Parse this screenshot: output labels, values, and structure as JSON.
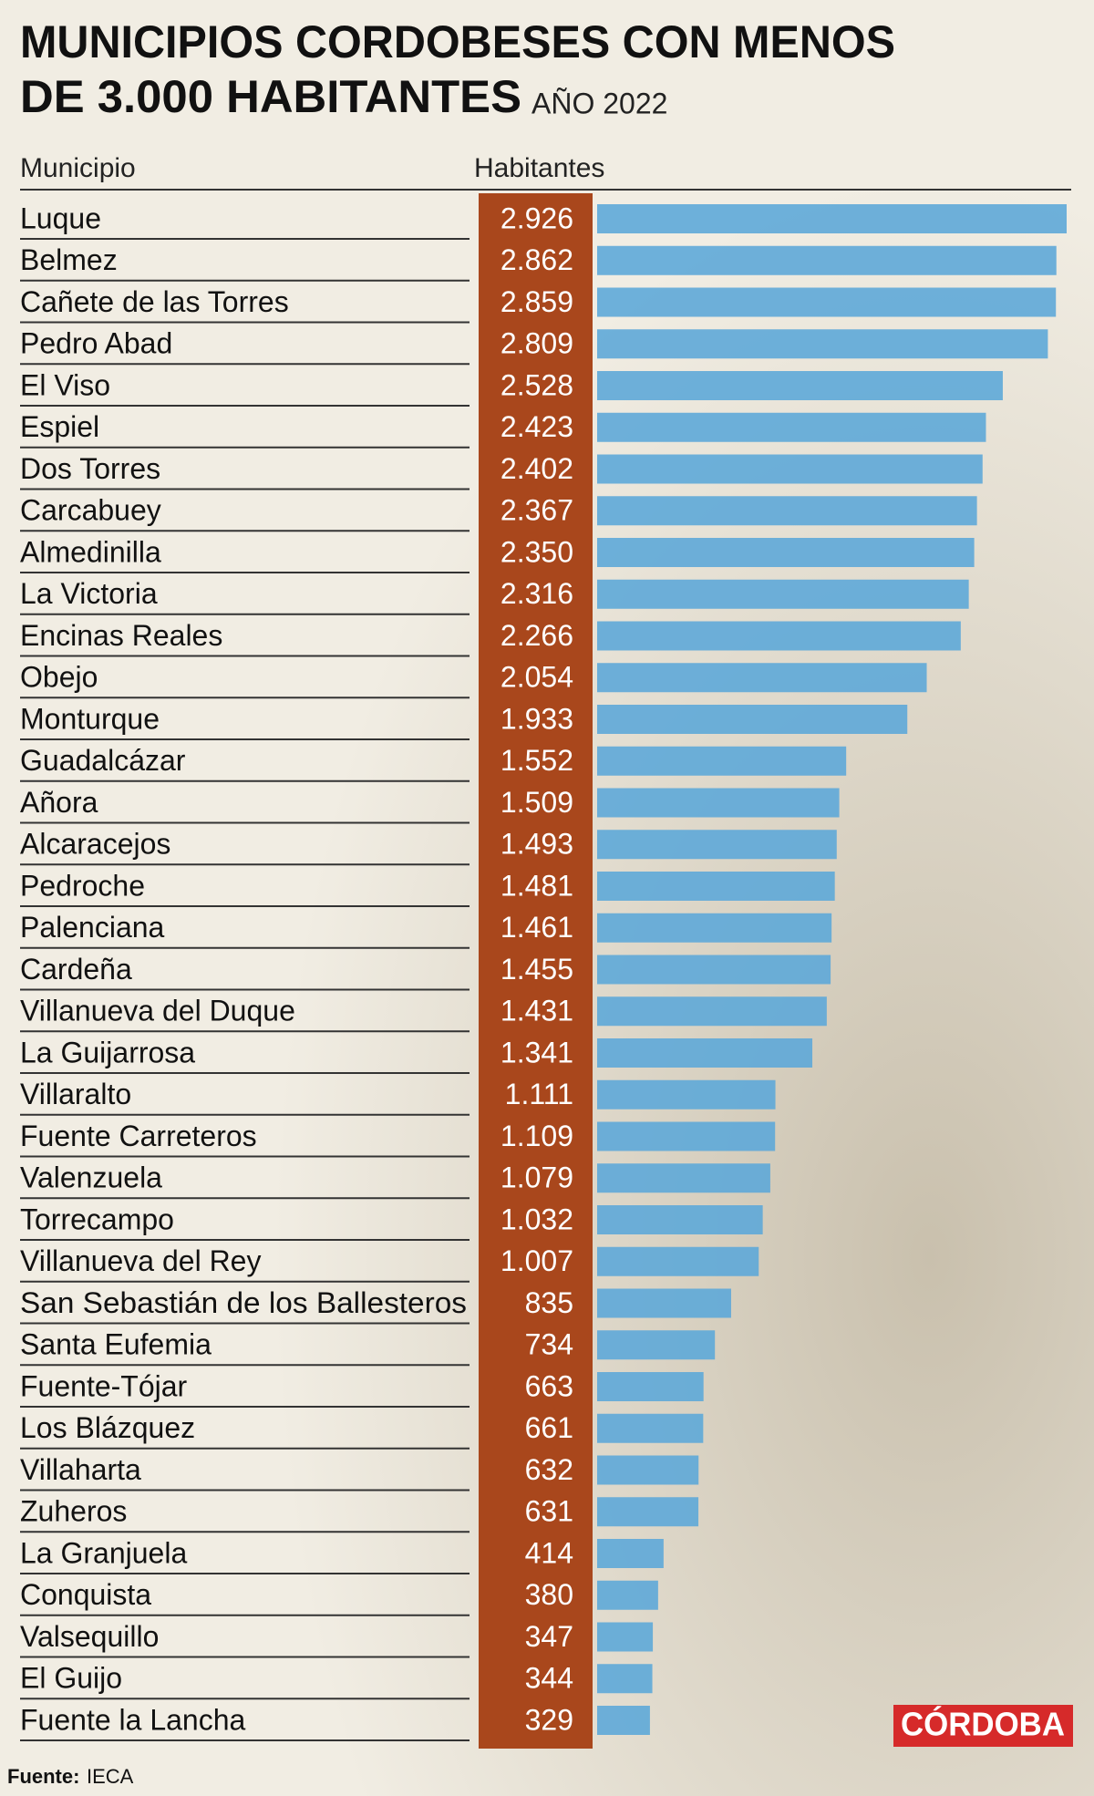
{
  "chart_data": {
    "type": "bar",
    "title": [
      "MUNICIPIOS CORDOBESES CON MENOS",
      "DE 3.000 HABITANTES"
    ],
    "subtitle": "AÑO 2022",
    "category_header": "Municipio",
    "value_header": "Habitantes",
    "categories": [
      "Luque",
      "Belmez",
      "Cañete de las Torres",
      "Pedro Abad",
      "El Viso",
      "Espiel",
      "Dos Torres",
      "Carcabuey",
      "Almedinilla",
      "La Victoria",
      "Encinas Reales",
      "Obejo",
      "Monturque",
      "Guadalcázar",
      "Añora",
      "Alcaracejos",
      "Pedroche",
      "Palenciana",
      "Cardeña",
      "Villanueva del Duque",
      "La Guijarrosa",
      "Villaralto",
      "Fuente Carreteros",
      "Valenzuela",
      "Torrecampo",
      "Villanueva del Rey",
      "San Sebastián de los Ballesteros",
      "Santa Eufemia",
      "Fuente-Tójar",
      "Los Blázquez",
      "Villaharta",
      "Zuheros",
      "La Granjuela",
      "Conquista",
      "Valsequillo",
      "El Guijo",
      "Fuente la Lancha"
    ],
    "values": [
      2926,
      2862,
      2859,
      2809,
      2528,
      2423,
      2402,
      2367,
      2350,
      2316,
      2266,
      2054,
      1933,
      1552,
      1509,
      1493,
      1481,
      1461,
      1455,
      1431,
      1341,
      1111,
      1109,
      1079,
      1032,
      1007,
      835,
      734,
      663,
      661,
      632,
      631,
      414,
      380,
      347,
      344,
      329
    ],
    "value_labels": [
      "2.926",
      "2.862",
      "2.859",
      "2.809",
      "2.528",
      "2.423",
      "2.402",
      "2.367",
      "2.350",
      "2.316",
      "2.266",
      "2.054",
      "1.933",
      "1.552",
      "1.509",
      "1.493",
      "1.481",
      "1.461",
      "1.455",
      "1.431",
      "1.341",
      "1.111",
      "1.109",
      "1.079",
      "1.032",
      "1.007",
      "835",
      "734",
      "663",
      "661",
      "632",
      "631",
      "414",
      "380",
      "347",
      "344",
      "329"
    ],
    "color": "#5ea8d8",
    "label_column_color": "#a9471c",
    "source_label": "Fuente:",
    "source": "IECA",
    "logo": "CÓRDOBA"
  }
}
